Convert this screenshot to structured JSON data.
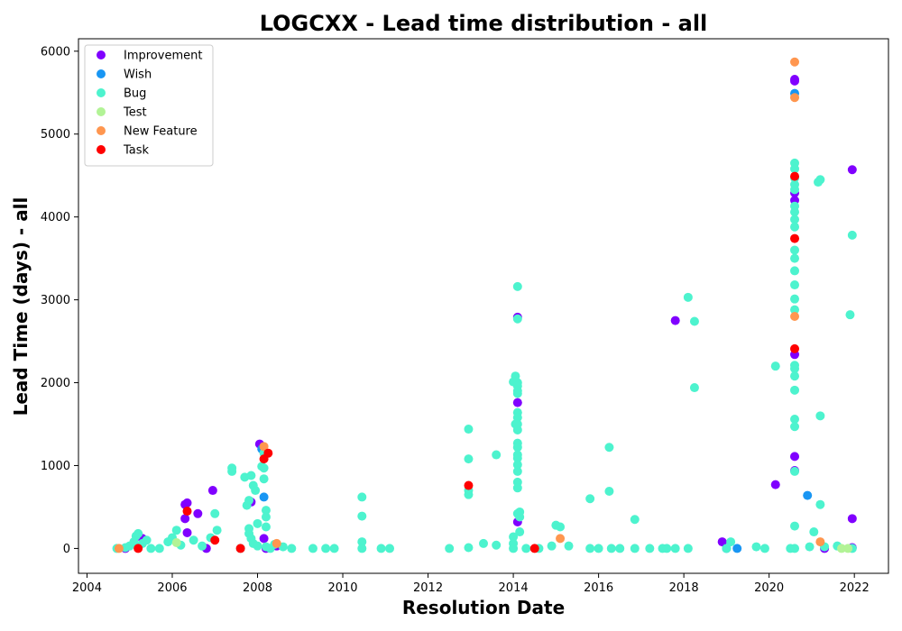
{
  "chart_data": {
    "type": "scatter",
    "title": "LOGCXX - Lead time distribution - all",
    "xlabel": "Resolution Date",
    "ylabel": "Lead Time (days) - all",
    "xlim": [
      2003.8,
      2022.8
    ],
    "ylim": [
      -300,
      6150
    ],
    "x_ticks": [
      2004,
      2006,
      2008,
      2010,
      2012,
      2014,
      2016,
      2018,
      2020,
      2022
    ],
    "y_ticks": [
      0,
      1000,
      2000,
      3000,
      4000,
      5000,
      6000
    ],
    "legend_position": "top-left",
    "grid": false,
    "series": [
      {
        "name": "Improvement",
        "color": "#8000ff",
        "points": [
          [
            2004.9,
            0
          ],
          [
            2005.3,
            120
          ],
          [
            2006.3,
            530
          ],
          [
            2006.35,
            550
          ],
          [
            2006.3,
            360
          ],
          [
            2006.35,
            190
          ],
          [
            2006.6,
            420
          ],
          [
            2006.8,
            0
          ],
          [
            2006.95,
            700
          ],
          [
            2007.85,
            560
          ],
          [
            2008.05,
            1260
          ],
          [
            2008.15,
            120
          ],
          [
            2008.2,
            0
          ],
          [
            2008.45,
            30
          ],
          [
            2014.1,
            2790
          ],
          [
            2014.1,
            1760
          ],
          [
            2014.1,
            320
          ],
          [
            2017.8,
            2750
          ],
          [
            2018.9,
            80
          ],
          [
            2020.15,
            770
          ],
          [
            2020.6,
            5660
          ],
          [
            2020.6,
            5640
          ],
          [
            2020.6,
            4290
          ],
          [
            2020.6,
            4200
          ],
          [
            2020.6,
            2340
          ],
          [
            2020.6,
            1110
          ],
          [
            2020.6,
            940
          ],
          [
            2021.3,
            0
          ],
          [
            2021.95,
            4570
          ],
          [
            2021.95,
            360
          ],
          [
            2021.95,
            10
          ]
        ]
      },
      {
        "name": "Wish",
        "color": "#1996f3",
        "points": [
          [
            2008.15,
            620
          ],
          [
            2008.1,
            1200
          ],
          [
            2020.6,
            5490
          ],
          [
            2020.9,
            640
          ],
          [
            2019.25,
            0
          ],
          [
            2019.0,
            0
          ]
        ]
      },
      {
        "name": "Bug",
        "color": "#4df3ce",
        "points": [
          [
            2004.7,
            0
          ],
          [
            2004.9,
            10
          ],
          [
            2005.0,
            30
          ],
          [
            2005.1,
            80
          ],
          [
            2005.15,
            150
          ],
          [
            2005.2,
            180
          ],
          [
            2005.3,
            60
          ],
          [
            2005.4,
            100
          ],
          [
            2005.5,
            0
          ],
          [
            2005.7,
            0
          ],
          [
            2005.9,
            80
          ],
          [
            2006.0,
            130
          ],
          [
            2006.1,
            220
          ],
          [
            2006.2,
            40
          ],
          [
            2006.5,
            100
          ],
          [
            2006.7,
            30
          ],
          [
            2006.9,
            130
          ],
          [
            2007.0,
            420
          ],
          [
            2007.05,
            220
          ],
          [
            2007.4,
            930
          ],
          [
            2007.4,
            970
          ],
          [
            2007.6,
            0
          ],
          [
            2007.7,
            860
          ],
          [
            2007.75,
            520
          ],
          [
            2007.8,
            580
          ],
          [
            2007.85,
            880
          ],
          [
            2007.9,
            760
          ],
          [
            2007.95,
            700
          ],
          [
            2007.8,
            240
          ],
          [
            2007.8,
            180
          ],
          [
            2007.85,
            120
          ],
          [
            2007.9,
            60
          ],
          [
            2008.0,
            30
          ],
          [
            2008.0,
            300
          ],
          [
            2008.1,
            990
          ],
          [
            2008.15,
            970
          ],
          [
            2008.15,
            1150
          ],
          [
            2008.15,
            840
          ],
          [
            2008.2,
            460
          ],
          [
            2008.2,
            380
          ],
          [
            2008.2,
            260
          ],
          [
            2008.2,
            20
          ],
          [
            2008.3,
            0
          ],
          [
            2008.4,
            50
          ],
          [
            2008.6,
            20
          ],
          [
            2008.8,
            0
          ],
          [
            2009.3,
            0
          ],
          [
            2009.6,
            0
          ],
          [
            2009.8,
            0
          ],
          [
            2010.45,
            620
          ],
          [
            2010.45,
            390
          ],
          [
            2010.45,
            80
          ],
          [
            2010.45,
            0
          ],
          [
            2010.9,
            0
          ],
          [
            2011.1,
            0
          ],
          [
            2012.5,
            0
          ],
          [
            2012.95,
            1440
          ],
          [
            2012.95,
            1080
          ],
          [
            2012.95,
            700
          ],
          [
            2012.95,
            650
          ],
          [
            2012.95,
            10
          ],
          [
            2013.3,
            60
          ],
          [
            2013.6,
            1130
          ],
          [
            2013.6,
            40
          ],
          [
            2014.0,
            2010
          ],
          [
            2014.05,
            2080
          ],
          [
            2014.05,
            1500
          ],
          [
            2014.1,
            3160
          ],
          [
            2014.1,
            2770
          ],
          [
            2014.1,
            2000
          ],
          [
            2014.1,
            1960
          ],
          [
            2014.1,
            1900
          ],
          [
            2014.1,
            1870
          ],
          [
            2014.1,
            1640
          ],
          [
            2014.1,
            1580
          ],
          [
            2014.1,
            1500
          ],
          [
            2014.1,
            1430
          ],
          [
            2014.1,
            1270
          ],
          [
            2014.1,
            1220
          ],
          [
            2014.1,
            1130
          ],
          [
            2014.1,
            1090
          ],
          [
            2014.1,
            1010
          ],
          [
            2014.1,
            930
          ],
          [
            2014.1,
            800
          ],
          [
            2014.1,
            730
          ],
          [
            2014.1,
            420
          ],
          [
            2014.15,
            440
          ],
          [
            2014.15,
            380
          ],
          [
            2014.15,
            200
          ],
          [
            2014.0,
            140
          ],
          [
            2014.0,
            60
          ],
          [
            2014.0,
            0
          ],
          [
            2014.3,
            0
          ],
          [
            2014.6,
            0
          ],
          [
            2014.9,
            30
          ],
          [
            2015.0,
            280
          ],
          [
            2015.1,
            260
          ],
          [
            2015.3,
            30
          ],
          [
            2015.8,
            600
          ],
          [
            2015.8,
            0
          ],
          [
            2016.0,
            0
          ],
          [
            2016.25,
            1220
          ],
          [
            2016.25,
            690
          ],
          [
            2016.3,
            0
          ],
          [
            2016.5,
            0
          ],
          [
            2016.85,
            350
          ],
          [
            2016.85,
            0
          ],
          [
            2017.2,
            0
          ],
          [
            2017.5,
            0
          ],
          [
            2017.6,
            0
          ],
          [
            2017.8,
            0
          ],
          [
            2018.1,
            3030
          ],
          [
            2018.25,
            2740
          ],
          [
            2018.25,
            1940
          ],
          [
            2018.1,
            0
          ],
          [
            2019.1,
            80
          ],
          [
            2019.0,
            0
          ],
          [
            2019.7,
            20
          ],
          [
            2019.9,
            0
          ],
          [
            2020.15,
            2200
          ],
          [
            2020.5,
            0
          ],
          [
            2020.6,
            4650
          ],
          [
            2020.6,
            4580
          ],
          [
            2020.6,
            4470
          ],
          [
            2020.6,
            4390
          ],
          [
            2020.6,
            4330
          ],
          [
            2020.6,
            4130
          ],
          [
            2020.6,
            4060
          ],
          [
            2020.6,
            3970
          ],
          [
            2020.6,
            3880
          ],
          [
            2020.6,
            3600
          ],
          [
            2020.6,
            3500
          ],
          [
            2020.6,
            3350
          ],
          [
            2020.6,
            3180
          ],
          [
            2020.6,
            3010
          ],
          [
            2020.6,
            2880
          ],
          [
            2020.6,
            2210
          ],
          [
            2020.6,
            2170
          ],
          [
            2020.6,
            2080
          ],
          [
            2020.6,
            1910
          ],
          [
            2020.6,
            1560
          ],
          [
            2020.6,
            1470
          ],
          [
            2020.6,
            930
          ],
          [
            2020.6,
            270
          ],
          [
            2020.6,
            0
          ],
          [
            2020.95,
            20
          ],
          [
            2021.05,
            200
          ],
          [
            2021.15,
            4420
          ],
          [
            2021.2,
            4450
          ],
          [
            2021.2,
            1600
          ],
          [
            2021.2,
            530
          ],
          [
            2021.3,
            20
          ],
          [
            2021.6,
            30
          ],
          [
            2021.95,
            3780
          ],
          [
            2021.9,
            2820
          ],
          [
            2021.95,
            0
          ]
        ]
      },
      {
        "name": "Test",
        "color": "#b2f396",
        "points": [
          [
            2006.1,
            70
          ],
          [
            2021.7,
            0
          ],
          [
            2021.85,
            0
          ]
        ]
      },
      {
        "name": "New Feature",
        "color": "#ff964f",
        "points": [
          [
            2004.75,
            0
          ],
          [
            2008.15,
            1230
          ],
          [
            2008.45,
            60
          ],
          [
            2015.1,
            120
          ],
          [
            2020.6,
            5870
          ],
          [
            2020.6,
            5440
          ],
          [
            2020.6,
            2800
          ],
          [
            2021.2,
            80
          ]
        ]
      },
      {
        "name": "Task",
        "color": "#ff0000",
        "points": [
          [
            2005.2,
            0
          ],
          [
            2006.35,
            450
          ],
          [
            2007.0,
            100
          ],
          [
            2007.6,
            0
          ],
          [
            2008.15,
            1080
          ],
          [
            2008.25,
            1150
          ],
          [
            2012.95,
            760
          ],
          [
            2014.5,
            0
          ],
          [
            2020.6,
            4490
          ],
          [
            2020.6,
            3740
          ],
          [
            2020.6,
            2410
          ]
        ]
      }
    ]
  }
}
